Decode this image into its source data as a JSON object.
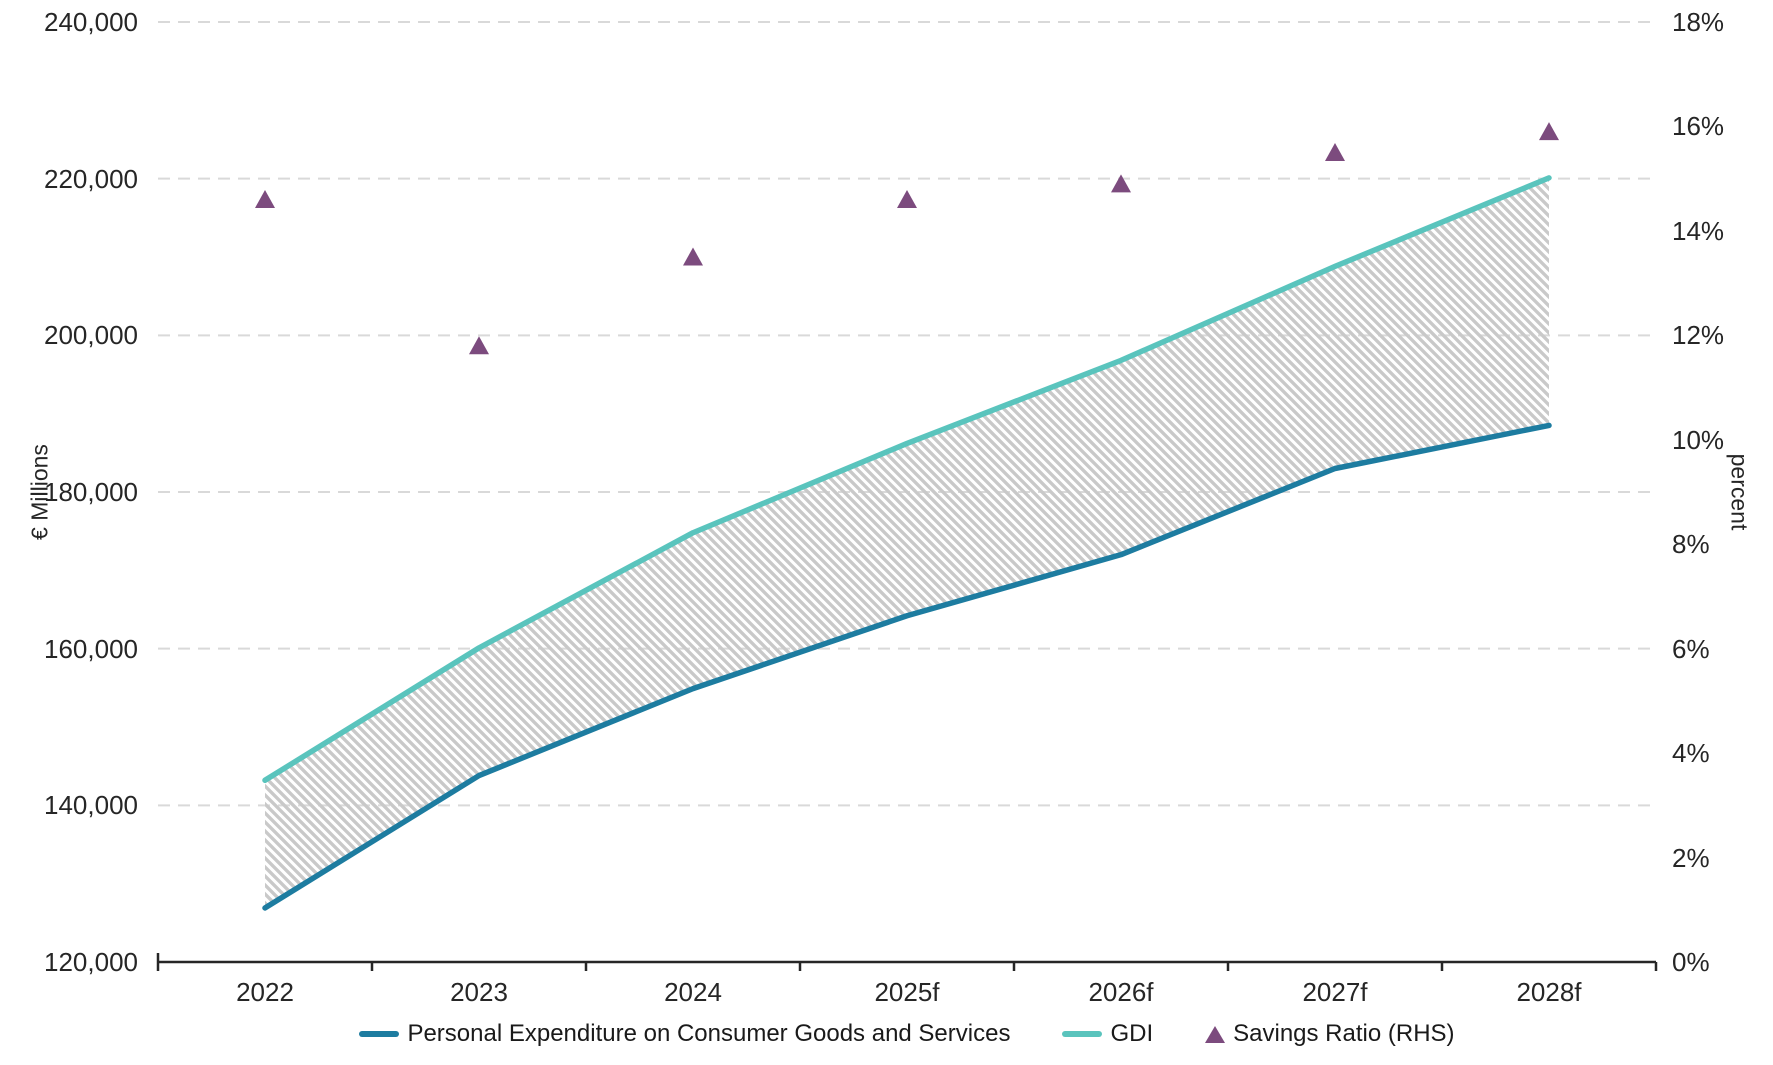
{
  "chart_data": {
    "type": "line",
    "categories": [
      "2022",
      "2023",
      "2024",
      "2025f",
      "2026f",
      "2027f",
      "2028f"
    ],
    "series": [
      {
        "name": "Personal Expenditure on Consumer Goods and Services",
        "type": "line",
        "axis": "left",
        "color": "#1d7ca0",
        "values": [
          126900,
          143800,
          154900,
          164200,
          172000,
          183000,
          188500
        ]
      },
      {
        "name": "GDI",
        "type": "line",
        "axis": "left",
        "color": "#5ac4bd",
        "values": [
          143200,
          160100,
          174800,
          186200,
          196800,
          208800,
          220100
        ]
      },
      {
        "name": "Savings Ratio (RHS)",
        "type": "scatter",
        "marker": "triangle",
        "axis": "right",
        "color": "#7c4b7e",
        "values": [
          14.6,
          11.8,
          13.5,
          14.6,
          14.9,
          15.5,
          15.9
        ]
      }
    ],
    "fill_between": {
      "upper": "GDI",
      "lower": "Personal Expenditure on Consumer Goods and Services",
      "style": "diagonal-hatch",
      "hatch_color": "#c9c9c9"
    },
    "left_axis": {
      "title": "€ Millions",
      "min": 120000,
      "max": 240000,
      "step": 20000,
      "labels": [
        "240,000",
        "220,000",
        "200,000",
        "180,000",
        "160,000",
        "140,000",
        "120,000"
      ]
    },
    "right_axis": {
      "title": "percent",
      "min": 0,
      "max": 18,
      "step": 2,
      "labels": [
        "18%",
        "16%",
        "14%",
        "12%",
        "10%",
        "8%",
        "6%",
        "4%",
        "2%",
        "0%"
      ]
    },
    "grid": "horizontal-dashed",
    "grid_color": "#d9d9d9",
    "axis_line_color": "#262626",
    "legend_position": "bottom"
  }
}
